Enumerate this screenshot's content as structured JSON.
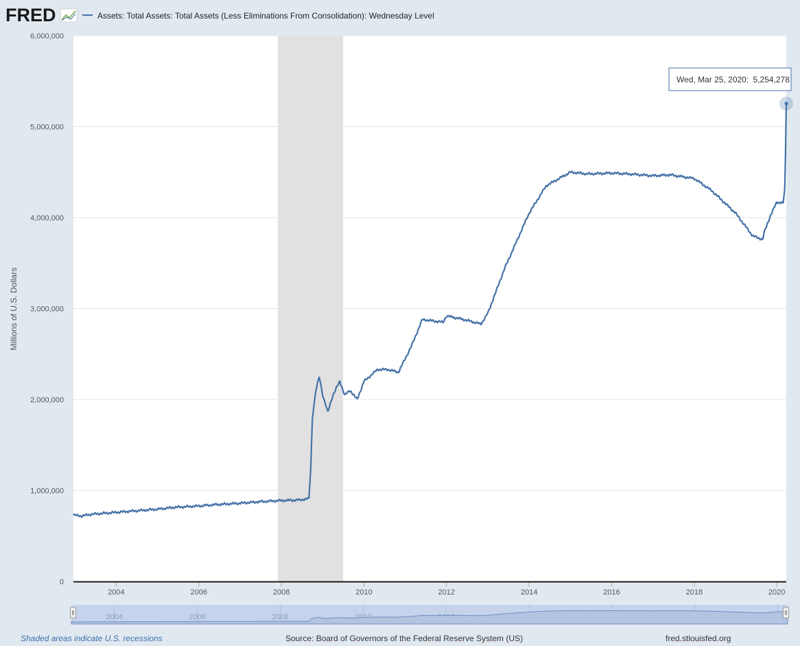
{
  "header": {
    "logo_text": "FRED",
    "logo_icon": "line-chart-icon",
    "legend_label": "Assets: Total Assets: Total Assets (Less Eliminations From Consolidation): Wednesday Level"
  },
  "colors": {
    "series": "#4572a7",
    "recession": "#e1e1e1",
    "background": "#e1e9f0",
    "plot": "#ffffff",
    "navigator": "#c6d3ec"
  },
  "tooltip": {
    "date": "Wed, Mar 25, 2020:",
    "value": "5,254,278"
  },
  "footer": {
    "recession_note": "Shaded areas indicate U.S. recessions",
    "source": "Source: Board of Governors of the Federal Reserve System (US)",
    "site": "fred.stlouisfed.org"
  },
  "chart_data": {
    "type": "line",
    "title": "",
    "xlabel": "",
    "ylabel": "Millions of U.S. Dollars",
    "xlim": [
      "2002-12-18",
      "2020-03-25"
    ],
    "ylim": [
      0,
      6000000
    ],
    "y_ticks": [
      "0",
      "1,000,000",
      "2,000,000",
      "3,000,000",
      "4,000,000",
      "5,000,000",
      "6,000,000"
    ],
    "x_ticks": [
      "2004",
      "2006",
      "2008",
      "2010",
      "2012",
      "2014",
      "2016",
      "2018",
      "2020"
    ],
    "grid": true,
    "legend_position": "top-left",
    "recessions": [
      [
        "2007-12-01",
        "2009-06-30"
      ]
    ],
    "series": [
      {
        "name": "Assets: Total Assets: Total Assets (Less Eliminations From Consolidation): Wednesday Level",
        "points": [
          [
            "2002-12-18",
            730000
          ],
          [
            "2003-03-01",
            720000
          ],
          [
            "2003-06-01",
            740000
          ],
          [
            "2004-01-01",
            760000
          ],
          [
            "2004-06-01",
            775000
          ],
          [
            "2005-01-01",
            795000
          ],
          [
            "2005-06-01",
            815000
          ],
          [
            "2006-01-01",
            830000
          ],
          [
            "2006-06-01",
            845000
          ],
          [
            "2007-01-01",
            860000
          ],
          [
            "2007-06-01",
            875000
          ],
          [
            "2008-01-01",
            890000
          ],
          [
            "2008-06-01",
            895000
          ],
          [
            "2008-09-01",
            910000
          ],
          [
            "2008-09-17",
            1250000
          ],
          [
            "2008-10-01",
            1800000
          ],
          [
            "2008-11-01",
            2100000
          ],
          [
            "2008-12-01",
            2250000
          ],
          [
            "2009-01-01",
            2050000
          ],
          [
            "2009-02-15",
            1860000
          ],
          [
            "2009-04-01",
            2050000
          ],
          [
            "2009-06-01",
            2200000
          ],
          [
            "2009-07-15",
            2050000
          ],
          [
            "2009-09-01",
            2100000
          ],
          [
            "2009-11-01",
            2000000
          ],
          [
            "2010-01-01",
            2200000
          ],
          [
            "2010-05-01",
            2330000
          ],
          [
            "2010-08-01",
            2330000
          ],
          [
            "2010-11-01",
            2300000
          ],
          [
            "2011-01-01",
            2450000
          ],
          [
            "2011-03-01",
            2600000
          ],
          [
            "2011-06-01",
            2880000
          ],
          [
            "2011-12-01",
            2850000
          ],
          [
            "2012-01-01",
            2920000
          ],
          [
            "2012-06-01",
            2880000
          ],
          [
            "2012-11-01",
            2830000
          ],
          [
            "2013-01-01",
            2950000
          ],
          [
            "2013-06-01",
            3450000
          ],
          [
            "2014-01-01",
            4050000
          ],
          [
            "2014-06-01",
            4350000
          ],
          [
            "2015-01-01",
            4500000
          ],
          [
            "2015-06-01",
            4480000
          ],
          [
            "2016-01-01",
            4490000
          ],
          [
            "2016-06-01",
            4480000
          ],
          [
            "2017-01-01",
            4460000
          ],
          [
            "2017-06-01",
            4470000
          ],
          [
            "2018-01-01",
            4430000
          ],
          [
            "2018-06-01",
            4300000
          ],
          [
            "2019-01-01",
            4050000
          ],
          [
            "2019-06-01",
            3800000
          ],
          [
            "2019-08-28",
            3760000
          ],
          [
            "2019-09-18",
            3860000
          ],
          [
            "2019-10-30",
            4000000
          ],
          [
            "2019-12-31",
            4170000
          ],
          [
            "2020-02-26",
            4160000
          ],
          [
            "2020-03-11",
            4300000
          ],
          [
            "2020-03-18",
            4670000
          ],
          [
            "2020-03-25",
            5254278
          ]
        ]
      }
    ]
  }
}
